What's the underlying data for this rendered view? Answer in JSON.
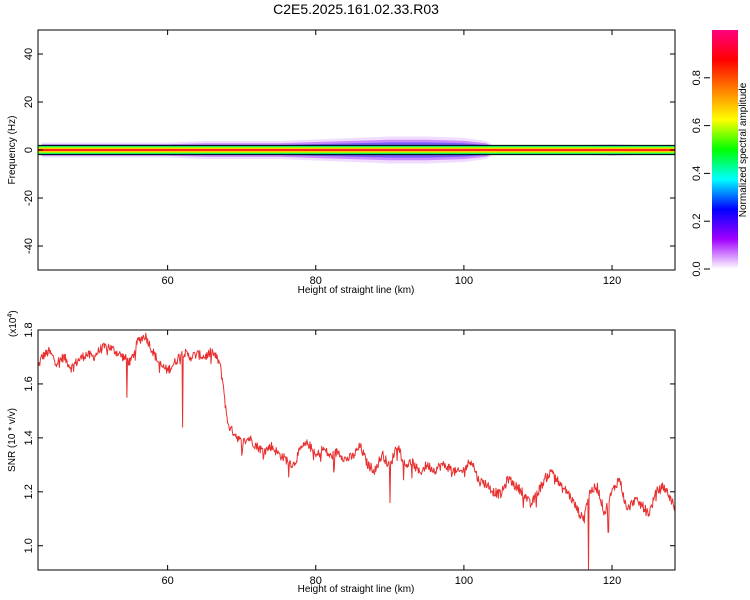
{
  "title": "C2E5.2025.161.02.33.R03",
  "chart_data": [
    {
      "type": "heatmap",
      "xlabel": "Height of straight line (km)",
      "ylabel": "Frequency (Hz)",
      "xlim": [
        42.5,
        128.5
      ],
      "ylim": [
        -50,
        50
      ],
      "x_ticks": [
        60,
        80,
        100,
        120
      ],
      "y_ticks": [
        40,
        20,
        0,
        -20,
        -40
      ],
      "colorbar": {
        "label": "Normalized spectral amplitude",
        "range": [
          0,
          1
        ],
        "ticks": [
          "0.0",
          "0.2",
          "0.4",
          "0.6",
          "0.8"
        ],
        "colors": [
          "#ffffff",
          "#a000ff",
          "#0000ff",
          "#00ffff",
          "#00ff00",
          "#ffff00",
          "#ff8000",
          "#ff0000",
          "#ff0080"
        ]
      },
      "band": {
        "center_hz": 0,
        "core_halfwidth_hz": 1.5,
        "halo_halfwidth_hz": [
          [
            43,
            2.5
          ],
          [
            50,
            2.5
          ],
          [
            55,
            2.5
          ],
          [
            60,
            2.5
          ],
          [
            65,
            3.0
          ],
          [
            70,
            3.0
          ],
          [
            75,
            3.0
          ],
          [
            80,
            3.5
          ],
          [
            85,
            4.0
          ],
          [
            90,
            4.5
          ],
          [
            95,
            4.5
          ],
          [
            100,
            4.0
          ],
          [
            103,
            3.0
          ],
          [
            104,
            1.5
          ],
          [
            110,
            1.5
          ],
          [
            115,
            1.5
          ],
          [
            120,
            2.0
          ],
          [
            125,
            1.5
          ],
          [
            128.5,
            1.5
          ]
        ]
      }
    },
    {
      "type": "line",
      "xlabel": "Height of straight line (km)",
      "ylabel": "SNR (10 * v/v)",
      "y_multiplier": "(x10",
      "y_multiplier_exp": "4",
      "y_multiplier_close": ")",
      "xlim": [
        42.5,
        128.5
      ],
      "ylim": [
        0.91,
        1.8
      ],
      "x_ticks": [
        60,
        80,
        100,
        120
      ],
      "y_ticks": [
        "1.0",
        "1.2",
        "1.4",
        "1.6",
        "1.8"
      ],
      "line_color": "#e83030",
      "series": [
        {
          "x": [
            42.5,
            43,
            44,
            45,
            46,
            47,
            48,
            49,
            50,
            51,
            52,
            53,
            54,
            55,
            56,
            57,
            58,
            59,
            60,
            61,
            62,
            63,
            64,
            65,
            66,
            67,
            67.5,
            68,
            68.5,
            69,
            70,
            71,
            72,
            73,
            74,
            75,
            76,
            77,
            78,
            79,
            80,
            81,
            82,
            83,
            84,
            85,
            86,
            87,
            88,
            89,
            90,
            91,
            92,
            93,
            94,
            95,
            96,
            97,
            98,
            99,
            100,
            101,
            102,
            103,
            104,
            105,
            106,
            107,
            108,
            109,
            110,
            111,
            112,
            113,
            114,
            115,
            116,
            117,
            118,
            119,
            120,
            121,
            122,
            123,
            124,
            125,
            126,
            127,
            128,
            128.5
          ],
          "y": [
            1.66,
            1.7,
            1.72,
            1.68,
            1.7,
            1.66,
            1.69,
            1.71,
            1.7,
            1.73,
            1.74,
            1.72,
            1.7,
            1.68,
            1.76,
            1.78,
            1.72,
            1.67,
            1.65,
            1.68,
            1.72,
            1.7,
            1.71,
            1.7,
            1.72,
            1.68,
            1.6,
            1.47,
            1.43,
            1.42,
            1.38,
            1.4,
            1.37,
            1.35,
            1.37,
            1.34,
            1.32,
            1.3,
            1.36,
            1.38,
            1.33,
            1.36,
            1.33,
            1.35,
            1.32,
            1.33,
            1.37,
            1.3,
            1.28,
            1.34,
            1.29,
            1.38,
            1.3,
            1.31,
            1.27,
            1.3,
            1.28,
            1.3,
            1.29,
            1.27,
            1.28,
            1.32,
            1.24,
            1.23,
            1.2,
            1.19,
            1.25,
            1.22,
            1.2,
            1.15,
            1.2,
            1.25,
            1.28,
            1.22,
            1.2,
            1.15,
            1.1,
            1.2,
            1.22,
            1.12,
            1.2,
            1.25,
            1.13,
            1.17,
            1.15,
            1.12,
            1.2,
            1.22,
            1.17,
            1.14
          ]
        }
      ],
      "notable_dips": [
        [
          54.5,
          1.55
        ],
        [
          62,
          1.44
        ],
        [
          90,
          1.16
        ],
        [
          116.8,
          0.91
        ],
        [
          119.5,
          1.05
        ]
      ]
    }
  ]
}
